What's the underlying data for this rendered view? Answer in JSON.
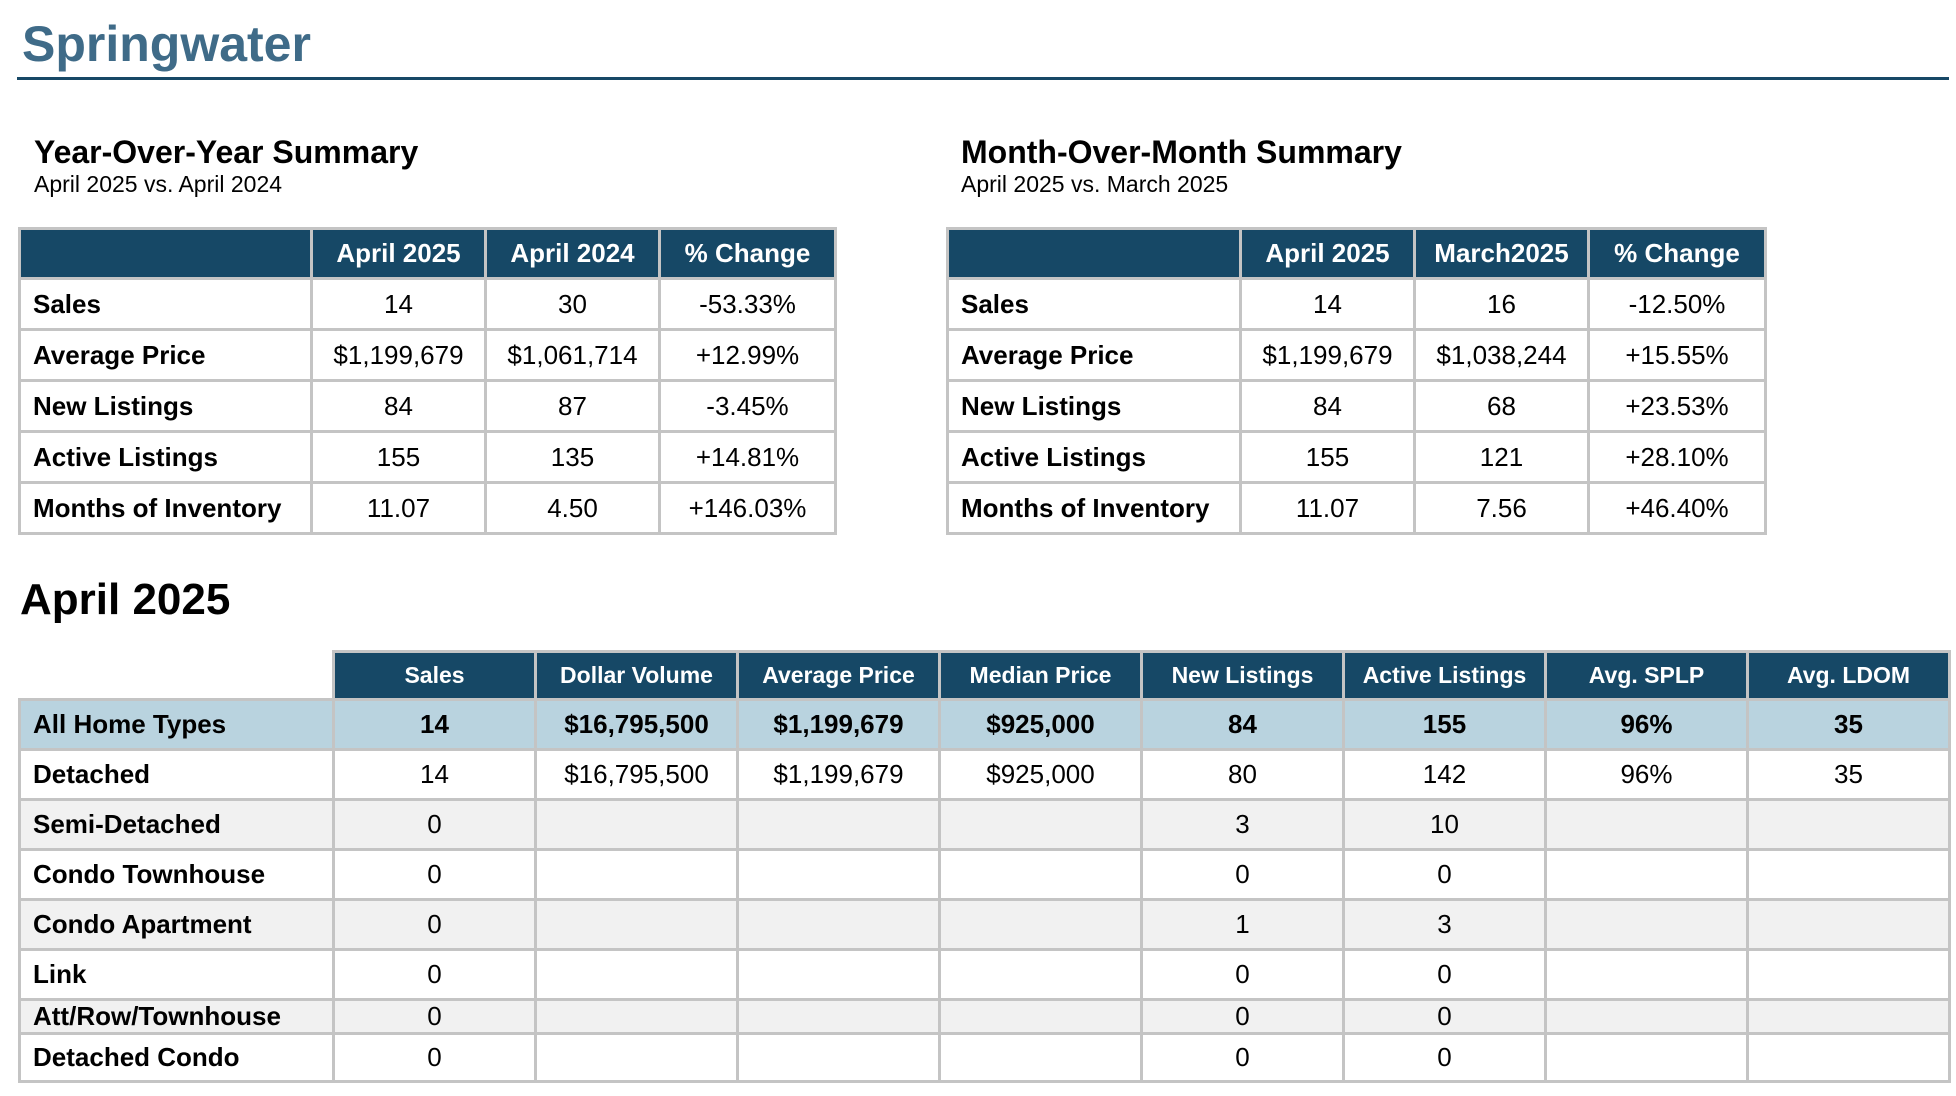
{
  "page": {
    "title": "Springwater"
  },
  "yoy": {
    "title": "Year-Over-Year Summary",
    "subtitle": "April 2025 vs. April 2024",
    "headers": [
      "April 2025",
      "April 2024",
      "% Change"
    ],
    "rows": [
      {
        "label": "Sales",
        "values": [
          "14",
          "30",
          "-53.33%"
        ]
      },
      {
        "label": "Average Price",
        "values": [
          "$1,199,679",
          "$1,061,714",
          "+12.99%"
        ]
      },
      {
        "label": "New Listings",
        "values": [
          "84",
          "87",
          "-3.45%"
        ]
      },
      {
        "label": "Active Listings",
        "values": [
          "155",
          "135",
          "+14.81%"
        ]
      },
      {
        "label": "Months of Inventory",
        "values": [
          "11.07",
          "4.50",
          "+146.03%"
        ]
      }
    ]
  },
  "mom": {
    "title": "Month-Over-Month Summary",
    "subtitle": "April 2025 vs. March 2025",
    "headers": [
      "April 2025",
      "March2025",
      "% Change"
    ],
    "rows": [
      {
        "label": "Sales",
        "values": [
          "14",
          "16",
          "-12.50%"
        ]
      },
      {
        "label": "Average Price",
        "values": [
          "$1,199,679",
          "$1,038,244",
          "+15.55%"
        ]
      },
      {
        "label": "New Listings",
        "values": [
          "84",
          "68",
          "+23.53%"
        ]
      },
      {
        "label": "Active Listings",
        "values": [
          "155",
          "121",
          "+28.10%"
        ]
      },
      {
        "label": "Months of Inventory",
        "values": [
          "11.07",
          "7.56",
          "+46.40%"
        ]
      }
    ]
  },
  "monthly": {
    "title": "April 2025",
    "headers": [
      "Sales",
      "Dollar Volume",
      "Average Price",
      "Median Price",
      "New Listings",
      "Active Listings",
      "Avg. SPLP",
      "Avg. LDOM"
    ],
    "rows": [
      {
        "label": "All Home Types",
        "values": [
          "14",
          "$16,795,500",
          "$1,199,679",
          "$925,000",
          "84",
          "155",
          "96%",
          "35"
        ]
      },
      {
        "label": "Detached",
        "values": [
          "14",
          "$16,795,500",
          "$1,199,679",
          "$925,000",
          "80",
          "142",
          "96%",
          "35"
        ]
      },
      {
        "label": "Semi-Detached",
        "values": [
          "0",
          "",
          "",
          "",
          "3",
          "10",
          "",
          ""
        ]
      },
      {
        "label": "Condo Townhouse",
        "values": [
          "0",
          "",
          "",
          "",
          "0",
          "0",
          "",
          ""
        ]
      },
      {
        "label": "Condo Apartment",
        "values": [
          "0",
          "",
          "",
          "",
          "1",
          "3",
          "",
          ""
        ]
      },
      {
        "label": "Link",
        "values": [
          "0",
          "",
          "",
          "",
          "0",
          "0",
          "",
          ""
        ]
      },
      {
        "label": "Att/Row/Townhouse",
        "values": [
          "0",
          "",
          "",
          "",
          "0",
          "0",
          "",
          ""
        ]
      },
      {
        "label": "Detached Condo",
        "values": [
          "0",
          "",
          "",
          "",
          "0",
          "0",
          "",
          ""
        ]
      }
    ]
  }
}
